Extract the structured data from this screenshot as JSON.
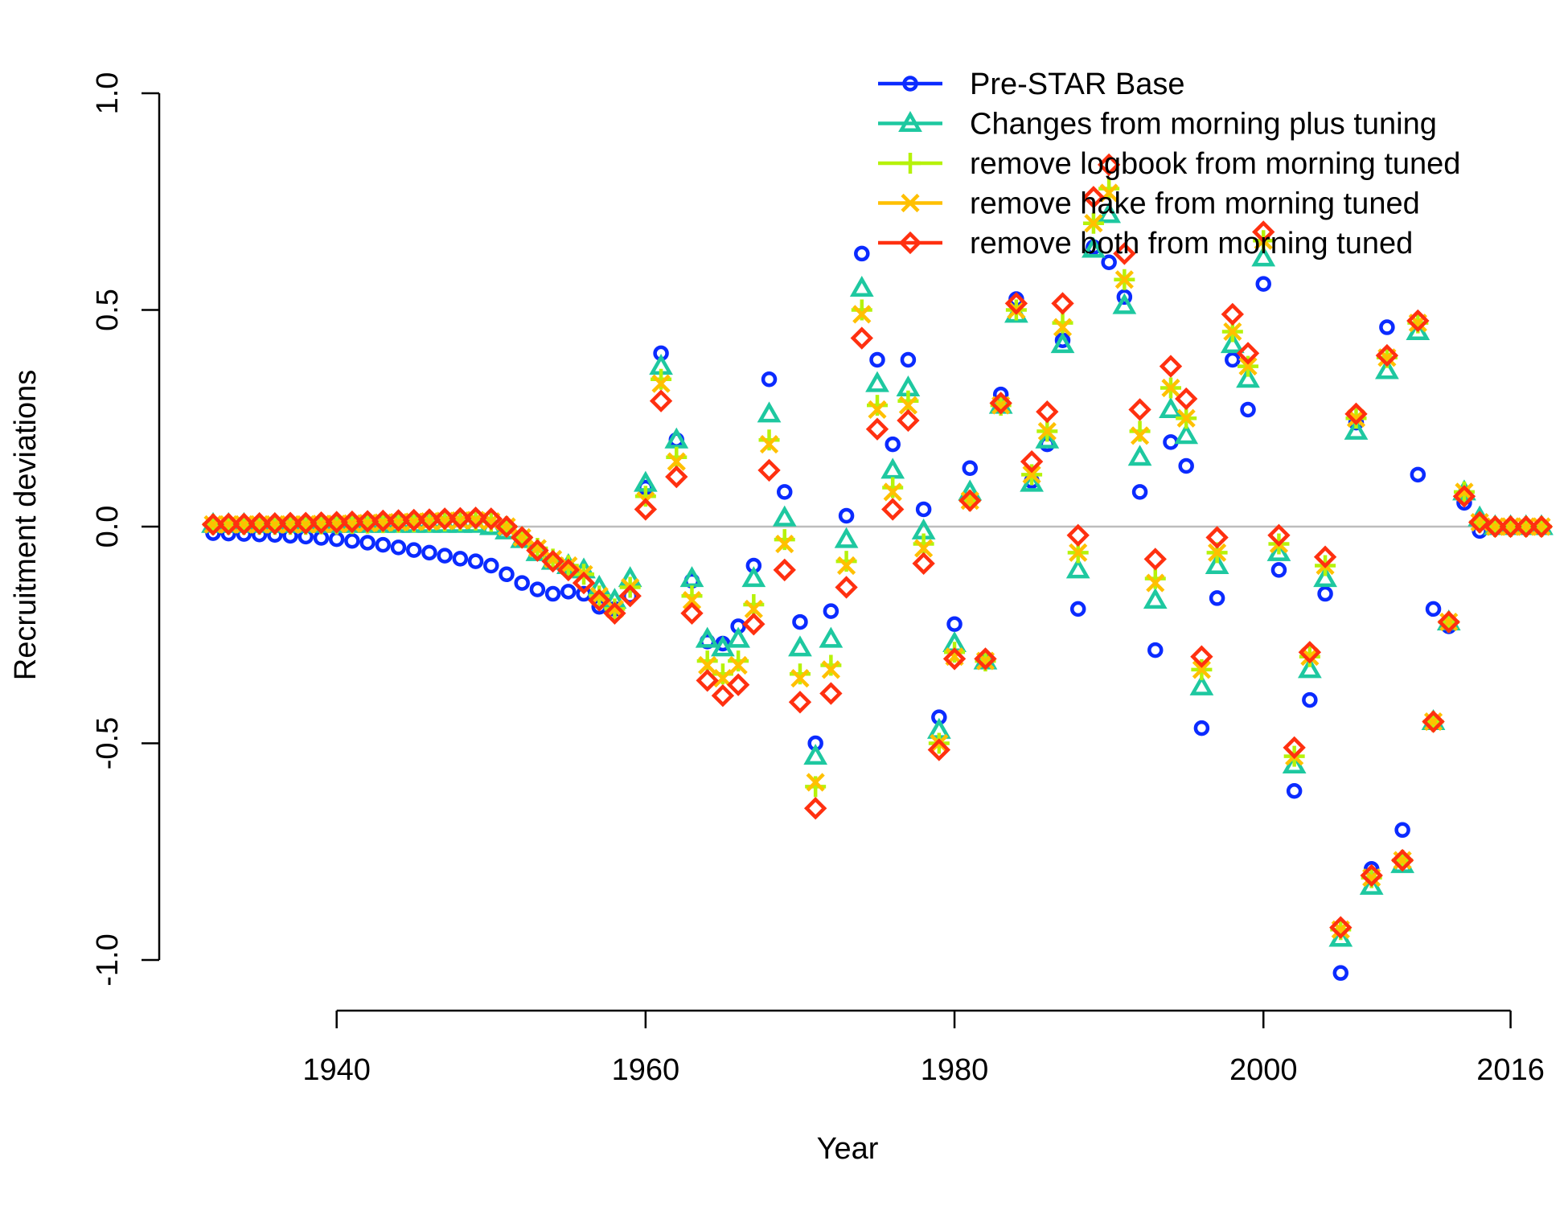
{
  "chart_data": {
    "type": "scatter",
    "title": "",
    "xlabel": "Year",
    "ylabel": "Recruitment deviations",
    "xlim": [
      1932,
      2018
    ],
    "ylim": [
      -1.0,
      1.0
    ],
    "x_ticks": [
      1940,
      1960,
      1980,
      2000,
      2016
    ],
    "y_ticks": [
      -1.0,
      -0.5,
      0.0,
      0.5,
      1.0
    ],
    "x_tick_labels": [
      "1940",
      "1960",
      "1980",
      "2000",
      "2016"
    ],
    "y_tick_labels": [
      "-1.0",
      "-0.5",
      "0.0",
      "0.5",
      "1.0"
    ],
    "reference_line": 0,
    "legend_position": "top-right",
    "series": [
      {
        "name": "Pre-STAR Base",
        "color": "#0b2bff",
        "marker": "circle",
        "x": [
          1932,
          1933,
          1934,
          1935,
          1936,
          1937,
          1938,
          1939,
          1940,
          1941,
          1942,
          1943,
          1944,
          1945,
          1946,
          1947,
          1948,
          1949,
          1950,
          1951,
          1952,
          1953,
          1954,
          1955,
          1956,
          1957,
          1958,
          1959,
          1960,
          1961,
          1962,
          1963,
          1964,
          1965,
          1966,
          1967,
          1968,
          1969,
          1970,
          1971,
          1972,
          1973,
          1974,
          1975,
          1976,
          1977,
          1978,
          1979,
          1980,
          1981,
          1982,
          1983,
          1984,
          1985,
          1986,
          1987,
          1988,
          1989,
          1990,
          1991,
          1992,
          1993,
          1994,
          1995,
          1996,
          1997,
          1998,
          1999,
          2000,
          2001,
          2002,
          2003,
          2004,
          2005,
          2006,
          2007,
          2008,
          2009,
          2010,
          2011,
          2012,
          2013,
          2014,
          2015,
          2016,
          2017,
          2018
        ],
        "y": [
          -0.015,
          -0.016,
          -0.017,
          -0.018,
          -0.019,
          -0.021,
          -0.023,
          -0.026,
          -0.029,
          -0.033,
          -0.037,
          -0.042,
          -0.048,
          -0.054,
          -0.06,
          -0.067,
          -0.074,
          -0.08,
          -0.09,
          -0.11,
          -0.13,
          -0.145,
          -0.155,
          -0.15,
          -0.155,
          -0.185,
          -0.19,
          -0.16,
          0.09,
          0.4,
          0.2,
          -0.125,
          -0.265,
          -0.27,
          -0.23,
          -0.09,
          0.34,
          0.08,
          -0.22,
          -0.5,
          -0.195,
          0.025,
          0.63,
          0.385,
          0.19,
          0.385,
          0.04,
          -0.44,
          -0.225,
          0.135,
          -0.305,
          0.305,
          0.525,
          0.105,
          0.19,
          0.43,
          -0.19,
          0.645,
          0.61,
          0.53,
          0.08,
          -0.285,
          0.195,
          0.14,
          -0.465,
          -0.165,
          0.385,
          0.27,
          0.56,
          -0.1,
          -0.61,
          -0.4,
          -0.155,
          -1.03,
          0.24,
          -0.79,
          0.46,
          -0.7,
          0.12,
          -0.19,
          -0.23,
          0.055,
          -0.01,
          0.0,
          0.0,
          0.0,
          0.0
        ]
      },
      {
        "name": "Changes from morning plus tuning",
        "color": "#1ec8a0",
        "marker": "triangle",
        "x": [
          1932,
          1933,
          1934,
          1935,
          1936,
          1937,
          1938,
          1939,
          1940,
          1941,
          1942,
          1943,
          1944,
          1945,
          1946,
          1947,
          1948,
          1949,
          1950,
          1951,
          1952,
          1953,
          1954,
          1955,
          1956,
          1957,
          1958,
          1959,
          1960,
          1961,
          1962,
          1963,
          1964,
          1965,
          1966,
          1967,
          1968,
          1969,
          1970,
          1971,
          1972,
          1973,
          1974,
          1975,
          1976,
          1977,
          1978,
          1979,
          1980,
          1981,
          1982,
          1983,
          1984,
          1985,
          1986,
          1987,
          1988,
          1989,
          1990,
          1991,
          1992,
          1993,
          1994,
          1995,
          1996,
          1997,
          1998,
          1999,
          2000,
          2001,
          2002,
          2003,
          2004,
          2005,
          2006,
          2007,
          2008,
          2009,
          2010,
          2011,
          2012,
          2013,
          2014,
          2015,
          2016,
          2017,
          2018
        ],
        "y": [
          0.005,
          0.005,
          0.005,
          0.005,
          0.005,
          0.005,
          0.005,
          0.005,
          0.005,
          0.005,
          0.005,
          0.005,
          0.005,
          0.005,
          0.005,
          0.005,
          0.005,
          0.005,
          0.0,
          -0.01,
          -0.03,
          -0.06,
          -0.08,
          -0.09,
          -0.1,
          -0.14,
          -0.17,
          -0.12,
          0.1,
          0.37,
          0.2,
          -0.12,
          -0.26,
          -0.28,
          -0.26,
          -0.12,
          0.26,
          0.02,
          -0.28,
          -0.53,
          -0.26,
          -0.03,
          0.55,
          0.33,
          0.13,
          0.32,
          -0.01,
          -0.47,
          -0.27,
          0.08,
          -0.31,
          0.28,
          0.49,
          0.1,
          0.2,
          0.42,
          -0.1,
          0.64,
          0.72,
          0.51,
          0.16,
          -0.17,
          0.27,
          0.21,
          -0.37,
          -0.09,
          0.42,
          0.34,
          0.62,
          -0.06,
          -0.55,
          -0.33,
          -0.12,
          -0.95,
          0.22,
          -0.83,
          0.36,
          -0.78,
          0.45,
          -0.45,
          -0.22,
          0.08,
          0.02,
          0.0,
          0.0,
          0.0,
          0.0
        ]
      },
      {
        "name": "remove logbook from morning tuned",
        "color": "#b6f20a",
        "marker": "plus",
        "x": [
          1932,
          1933,
          1934,
          1935,
          1936,
          1937,
          1938,
          1939,
          1940,
          1941,
          1942,
          1943,
          1944,
          1945,
          1946,
          1947,
          1948,
          1949,
          1950,
          1951,
          1952,
          1953,
          1954,
          1955,
          1956,
          1957,
          1958,
          1959,
          1960,
          1961,
          1962,
          1963,
          1964,
          1965,
          1966,
          1967,
          1968,
          1969,
          1970,
          1971,
          1972,
          1973,
          1974,
          1975,
          1976,
          1977,
          1978,
          1979,
          1980,
          1981,
          1982,
          1983,
          1984,
          1985,
          1986,
          1987,
          1988,
          1989,
          1990,
          1991,
          1992,
          1993,
          1994,
          1995,
          1996,
          1997,
          1998,
          1999,
          2000,
          2001,
          2002,
          2003,
          2004,
          2005,
          2006,
          2007,
          2008,
          2009,
          2010,
          2011,
          2012,
          2013,
          2014,
          2015,
          2016,
          2017,
          2018
        ],
        "y": [
          0.005,
          0.005,
          0.005,
          0.005,
          0.005,
          0.005,
          0.005,
          0.006,
          0.006,
          0.007,
          0.008,
          0.009,
          0.01,
          0.011,
          0.012,
          0.013,
          0.014,
          0.015,
          0.012,
          0.0,
          -0.025,
          -0.05,
          -0.075,
          -0.09,
          -0.11,
          -0.16,
          -0.19,
          -0.14,
          0.07,
          0.34,
          0.16,
          -0.16,
          -0.31,
          -0.34,
          -0.31,
          -0.18,
          0.2,
          -0.03,
          -0.34,
          -0.6,
          -0.32,
          -0.08,
          0.5,
          0.28,
          0.09,
          0.29,
          -0.04,
          -0.5,
          -0.29,
          0.06,
          -0.31,
          0.28,
          0.5,
          0.12,
          0.22,
          0.47,
          -0.06,
          0.7,
          0.78,
          0.57,
          0.22,
          -0.12,
          0.32,
          0.25,
          -0.33,
          -0.06,
          0.45,
          0.37,
          0.66,
          -0.04,
          -0.53,
          -0.3,
          -0.09,
          -0.93,
          0.25,
          -0.81,
          0.39,
          -0.77,
          0.47,
          -0.45,
          -0.22,
          0.08,
          0.01,
          0.0,
          0.0,
          0.0,
          0.0
        ]
      },
      {
        "name": "remove hake from morning tuned",
        "color": "#ffc000",
        "marker": "cross",
        "x": [
          1932,
          1933,
          1934,
          1935,
          1936,
          1937,
          1938,
          1939,
          1940,
          1941,
          1942,
          1943,
          1944,
          1945,
          1946,
          1947,
          1948,
          1949,
          1950,
          1951,
          1952,
          1953,
          1954,
          1955,
          1956,
          1957,
          1958,
          1959,
          1960,
          1961,
          1962,
          1963,
          1964,
          1965,
          1966,
          1967,
          1968,
          1969,
          1970,
          1971,
          1972,
          1973,
          1974,
          1975,
          1976,
          1977,
          1978,
          1979,
          1980,
          1981,
          1982,
          1983,
          1984,
          1985,
          1986,
          1987,
          1988,
          1989,
          1990,
          1991,
          1992,
          1993,
          1994,
          1995,
          1996,
          1997,
          1998,
          1999,
          2000,
          2001,
          2002,
          2003,
          2004,
          2005,
          2006,
          2007,
          2008,
          2009,
          2010,
          2011,
          2012,
          2013,
          2014,
          2015,
          2016,
          2017,
          2018
        ],
        "y": [
          0.005,
          0.005,
          0.005,
          0.005,
          0.005,
          0.005,
          0.005,
          0.006,
          0.006,
          0.007,
          0.008,
          0.009,
          0.01,
          0.011,
          0.012,
          0.013,
          0.014,
          0.015,
          0.012,
          0.0,
          -0.025,
          -0.05,
          -0.075,
          -0.09,
          -0.11,
          -0.16,
          -0.19,
          -0.14,
          0.06,
          0.33,
          0.15,
          -0.17,
          -0.32,
          -0.35,
          -0.32,
          -0.19,
          0.19,
          -0.04,
          -0.35,
          -0.59,
          -0.33,
          -0.09,
          0.49,
          0.27,
          0.08,
          0.28,
          -0.05,
          -0.5,
          -0.3,
          0.06,
          -0.31,
          0.28,
          0.5,
          0.12,
          0.22,
          0.46,
          -0.06,
          0.7,
          0.77,
          0.57,
          0.21,
          -0.13,
          0.32,
          0.25,
          -0.33,
          -0.06,
          0.45,
          0.37,
          0.66,
          -0.04,
          -0.53,
          -0.3,
          -0.09,
          -0.93,
          0.25,
          -0.81,
          0.39,
          -0.77,
          0.47,
          -0.45,
          -0.22,
          0.08,
          0.01,
          0.0,
          0.0,
          0.0,
          0.0
        ]
      },
      {
        "name": "remove both from morning tuned",
        "color": "#ff3010",
        "marker": "diamond",
        "x": [
          1932,
          1933,
          1934,
          1935,
          1936,
          1937,
          1938,
          1939,
          1940,
          1941,
          1942,
          1943,
          1944,
          1945,
          1946,
          1947,
          1948,
          1949,
          1950,
          1951,
          1952,
          1953,
          1954,
          1955,
          1956,
          1957,
          1958,
          1959,
          1960,
          1961,
          1962,
          1963,
          1964,
          1965,
          1966,
          1967,
          1968,
          1969,
          1970,
          1971,
          1972,
          1973,
          1974,
          1975,
          1976,
          1977,
          1978,
          1979,
          1980,
          1981,
          1982,
          1983,
          1984,
          1985,
          1986,
          1987,
          1988,
          1989,
          1990,
          1991,
          1992,
          1993,
          1994,
          1995,
          1996,
          1997,
          1998,
          1999,
          2000,
          2001,
          2002,
          2003,
          2004,
          2005,
          2006,
          2007,
          2008,
          2009,
          2010,
          2011,
          2012,
          2013,
          2014,
          2015,
          2016,
          2017,
          2018
        ],
        "y": [
          0.005,
          0.006,
          0.006,
          0.007,
          0.007,
          0.008,
          0.008,
          0.009,
          0.01,
          0.011,
          0.012,
          0.013,
          0.014,
          0.015,
          0.016,
          0.018,
          0.019,
          0.02,
          0.018,
          0.0,
          -0.025,
          -0.055,
          -0.08,
          -0.1,
          -0.13,
          -0.17,
          -0.2,
          -0.16,
          0.04,
          0.29,
          0.115,
          -0.2,
          -0.355,
          -0.39,
          -0.365,
          -0.225,
          0.13,
          -0.1,
          -0.405,
          -0.65,
          -0.385,
          -0.14,
          0.435,
          0.225,
          0.04,
          0.245,
          -0.085,
          -0.515,
          -0.305,
          0.06,
          -0.305,
          0.285,
          0.515,
          0.15,
          0.265,
          0.515,
          -0.02,
          0.76,
          0.835,
          0.63,
          0.27,
          -0.075,
          0.37,
          0.295,
          -0.3,
          -0.025,
          0.49,
          0.4,
          0.68,
          -0.02,
          -0.51,
          -0.29,
          -0.07,
          -0.925,
          0.26,
          -0.805,
          0.395,
          -0.77,
          0.475,
          -0.45,
          -0.22,
          0.07,
          0.01,
          0.0,
          0.0,
          0.0,
          0.0
        ]
      }
    ]
  }
}
